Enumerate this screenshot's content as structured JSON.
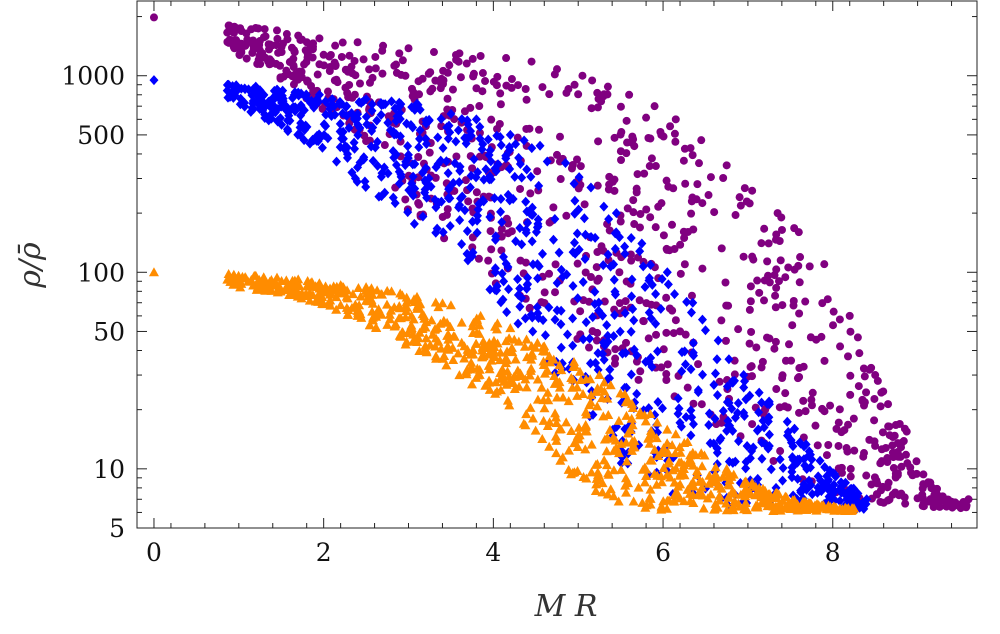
{
  "chart_data": {
    "type": "scatter",
    "title": "",
    "xlabel": "M R",
    "ylabel": "ρ/ρ̄",
    "xlim": [
      -0.2,
      9.7
    ],
    "ylim": [
      5,
      2400
    ],
    "yscale": "log",
    "x_ticks": [
      {
        "value": 0,
        "label": "0"
      },
      {
        "value": 2,
        "label": "2"
      },
      {
        "value": 4,
        "label": "4"
      },
      {
        "value": 6,
        "label": "6"
      },
      {
        "value": 8,
        "label": "8"
      }
    ],
    "y_ticks": [
      {
        "value": 5,
        "label": "5"
      },
      {
        "value": 10,
        "label": "10"
      },
      {
        "value": 50,
        "label": "50"
      },
      {
        "value": 100,
        "label": "100"
      },
      {
        "value": 500,
        "label": "500"
      },
      {
        "value": 1000,
        "label": "1000"
      }
    ],
    "series": [
      {
        "name": "purple",
        "color": "#800080",
        "marker": "circle",
        "points": [
          [
            0.0,
            1980
          ],
          [
            0.88,
            1800
          ],
          [
            1.2,
            1750
          ],
          [
            1.45,
            1700
          ],
          [
            1.7,
            1600
          ],
          [
            1.95,
            1550
          ],
          [
            2.4,
            1480
          ],
          [
            2.7,
            1420
          ],
          [
            3.0,
            1380
          ],
          [
            3.3,
            1320
          ],
          [
            3.6,
            1300
          ],
          [
            3.85,
            1260
          ],
          [
            4.15,
            1230
          ],
          [
            4.45,
            1180
          ],
          [
            4.75,
            1080
          ],
          [
            5.05,
            1000
          ],
          [
            5.35,
            880
          ],
          [
            5.6,
            800
          ],
          [
            5.9,
            700
          ],
          [
            6.15,
            600
          ],
          [
            6.45,
            470
          ],
          [
            6.75,
            350
          ],
          [
            7.05,
            260
          ],
          [
            7.35,
            200
          ],
          [
            7.6,
            160
          ],
          [
            7.9,
            110
          ],
          [
            8.2,
            60
          ],
          [
            8.5,
            30
          ],
          [
            8.85,
            16
          ],
          [
            9.15,
            8.5
          ],
          [
            9.4,
            6.8
          ],
          [
            9.6,
            7
          ]
        ],
        "cluster_bottom": [
          [
            0.88,
            1400
          ],
          [
            1.7,
            800
          ],
          [
            2.4,
            500
          ],
          [
            3.0,
            200
          ],
          [
            3.6,
            120
          ],
          [
            4.15,
            80
          ],
          [
            4.75,
            50
          ],
          [
            5.35,
            35
          ],
          [
            5.9,
            25
          ],
          [
            6.45,
            18
          ],
          [
            7.05,
            12
          ],
          [
            7.6,
            9
          ],
          [
            8.2,
            7
          ],
          [
            8.85,
            6.5
          ],
          [
            9.4,
            6.3
          ]
        ]
      },
      {
        "name": "blue",
        "color": "#0000ff",
        "marker": "diamond",
        "points": [
          [
            0.0,
            950
          ],
          [
            0.88,
            900
          ],
          [
            1.2,
            880
          ],
          [
            1.45,
            850
          ],
          [
            1.7,
            820
          ],
          [
            1.95,
            800
          ],
          [
            2.1,
            760
          ],
          [
            2.5,
            760
          ],
          [
            2.8,
            740
          ],
          [
            3.1,
            720
          ],
          [
            3.5,
            640
          ],
          [
            3.8,
            600
          ],
          [
            4.2,
            500
          ],
          [
            4.55,
            440
          ],
          [
            4.85,
            360
          ],
          [
            5.15,
            270
          ],
          [
            5.45,
            200
          ],
          [
            5.75,
            140
          ],
          [
            6.05,
            100
          ],
          [
            6.35,
            70
          ],
          [
            6.65,
            45
          ],
          [
            6.95,
            30
          ],
          [
            7.25,
            22
          ],
          [
            7.55,
            16
          ],
          [
            7.85,
            11
          ],
          [
            8.15,
            8.5
          ],
          [
            8.4,
            7
          ]
        ],
        "cluster_bottom": [
          [
            0.88,
            760
          ],
          [
            1.45,
            560
          ],
          [
            1.95,
            430
          ],
          [
            2.5,
            250
          ],
          [
            3.1,
            170
          ],
          [
            3.5,
            130
          ],
          [
            3.8,
            95
          ],
          [
            4.2,
            60
          ],
          [
            4.55,
            40
          ],
          [
            4.85,
            25
          ],
          [
            5.15,
            16
          ],
          [
            5.45,
            11
          ],
          [
            5.75,
            9
          ],
          [
            6.05,
            7.5
          ],
          [
            6.65,
            6.5
          ],
          [
            7.25,
            6.3
          ],
          [
            7.85,
            6.2
          ],
          [
            8.4,
            6.2
          ]
        ]
      },
      {
        "name": "orange",
        "color": "#ff8c00",
        "marker": "triangle",
        "points": [
          [
            0.0,
            100
          ],
          [
            0.88,
            98
          ],
          [
            1.2,
            96
          ],
          [
            1.45,
            94
          ],
          [
            1.7,
            92
          ],
          [
            1.95,
            88
          ],
          [
            2.2,
            86
          ],
          [
            2.5,
            84
          ],
          [
            2.8,
            80
          ],
          [
            3.1,
            75
          ],
          [
            3.5,
            68
          ],
          [
            3.85,
            60
          ],
          [
            4.2,
            52
          ],
          [
            4.6,
            42
          ],
          [
            4.95,
            35
          ],
          [
            5.25,
            30
          ],
          [
            5.55,
            24
          ],
          [
            5.85,
            19
          ],
          [
            6.15,
            15
          ],
          [
            6.45,
            12
          ],
          [
            6.75,
            10
          ],
          [
            7.05,
            8.5
          ],
          [
            7.35,
            7.5
          ],
          [
            7.65,
            6.8
          ],
          [
            7.95,
            6.5
          ],
          [
            8.25,
            6.3
          ]
        ],
        "cluster_bottom": [
          [
            0.88,
            85
          ],
          [
            1.45,
            78
          ],
          [
            1.95,
            70
          ],
          [
            2.5,
            55
          ],
          [
            3.1,
            40
          ],
          [
            3.5,
            32
          ],
          [
            3.85,
            25
          ],
          [
            4.2,
            20
          ],
          [
            4.6,
            13
          ],
          [
            4.95,
            9
          ],
          [
            5.25,
            7.5
          ],
          [
            5.55,
            6.5
          ],
          [
            5.85,
            6.2
          ],
          [
            6.45,
            6.1
          ],
          [
            7.05,
            6.1
          ],
          [
            7.65,
            6.1
          ],
          [
            8.25,
            6.1
          ]
        ]
      }
    ]
  }
}
